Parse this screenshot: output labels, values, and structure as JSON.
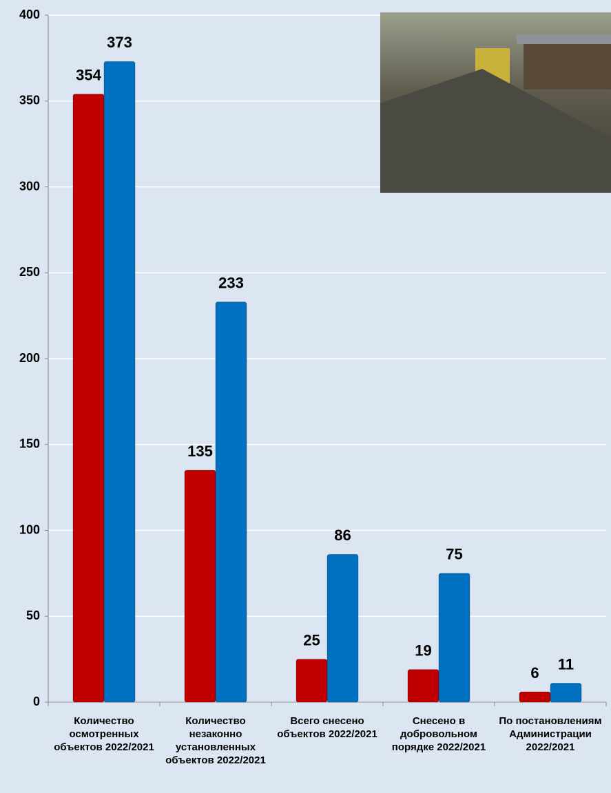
{
  "chart_data": {
    "type": "bar",
    "categories": [
      "Количество осмотренных объектов 2022/2021",
      "Количество незаконно установленных объектов 2022/2021",
      "Всего снесено объектов 2022/2021",
      "Снесено в добровольном порядке 2022/2021",
      "По постановлениям Администрации 2022/2021"
    ],
    "series": [
      {
        "color": "#c00000",
        "values": [
          354,
          135,
          25,
          19,
          6
        ]
      },
      {
        "color": "#0070c0",
        "values": [
          373,
          233,
          86,
          75,
          11
        ]
      }
    ],
    "ylim": [
      0,
      400
    ],
    "yticks": [
      0,
      50,
      100,
      150,
      200,
      250,
      300,
      350,
      400
    ],
    "grid": true
  }
}
